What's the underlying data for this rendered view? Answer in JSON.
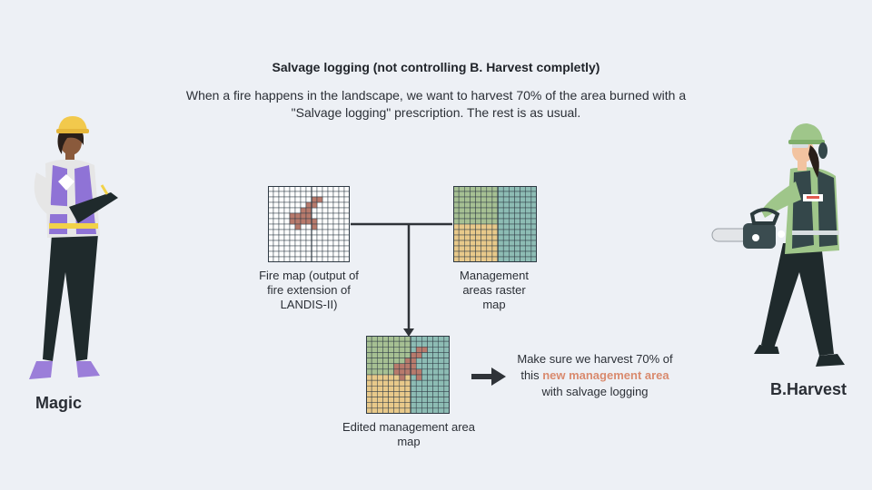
{
  "slide": {
    "title": "Salvage logging (not controlling B. Harvest completly)",
    "subtitle": "When a fire happens in the landscape, we want to harvest 70% of the area burned with a \"Salvage logging\" prescription. The rest is as usual."
  },
  "people": {
    "left_name": "Magic",
    "right_name": "B.Harvest"
  },
  "maps": {
    "fire_map_caption": "Fire map (output of fire extension of LANDIS-II)",
    "management_caption": "Management areas raster map",
    "edited_caption": "Edited management area map"
  },
  "note": {
    "part1": "Make sure we harvest 70% of this ",
    "highlight": "new management area",
    "part2": " with salvage logging"
  },
  "colors": {
    "fire_cell": "#b87a6c",
    "area_green": "#a6c093",
    "area_teal": "#8dbcb4",
    "area_yellow": "#e8c98a",
    "highlight": "#d98a6e",
    "grid_line": "#2f3a44"
  }
}
